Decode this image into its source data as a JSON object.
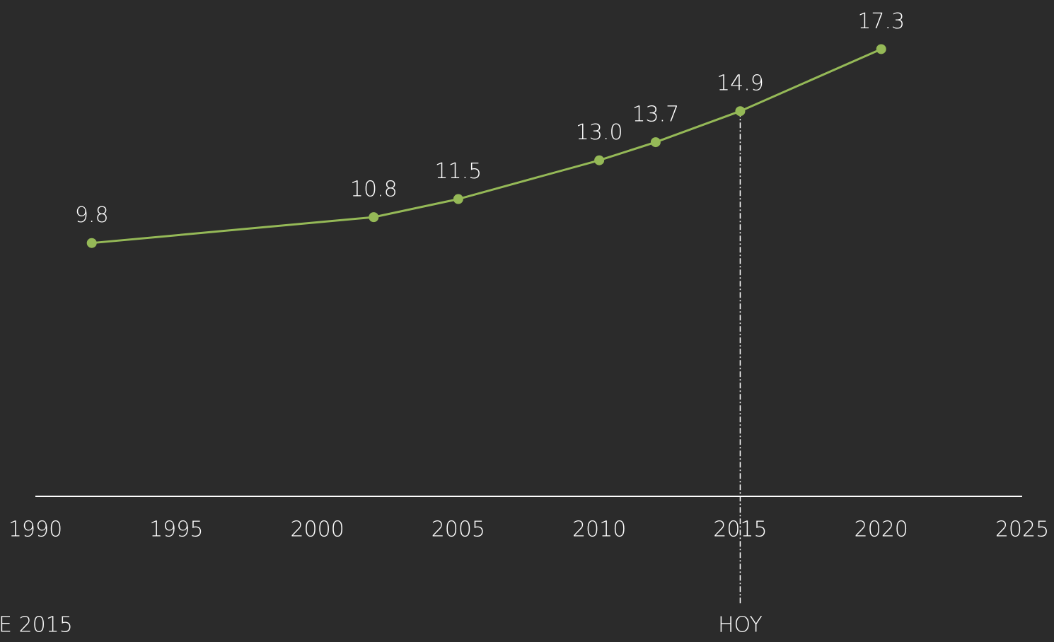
{
  "chart_data": {
    "type": "line",
    "x": [
      1992,
      2002,
      2005,
      2010,
      2012,
      2015,
      2020
    ],
    "series": [
      {
        "color": "#95b957",
        "values": [
          9.8,
          10.8,
          11.5,
          13.0,
          13.7,
          14.9,
          17.3
        ],
        "value_labels": [
          "9.8",
          "10.8",
          "11.5",
          "13.0",
          "13.7",
          "14.9",
          "17.3"
        ]
      }
    ],
    "xlim": [
      1990,
      2025
    ],
    "xticks": [
      1990,
      1995,
      2000,
      2005,
      2010,
      2015,
      2020,
      2025
    ],
    "ylim": [
      0,
      19.2
    ],
    "marker": {
      "x": 2015,
      "label": "HOY"
    },
    "footnote": "E 2015"
  }
}
